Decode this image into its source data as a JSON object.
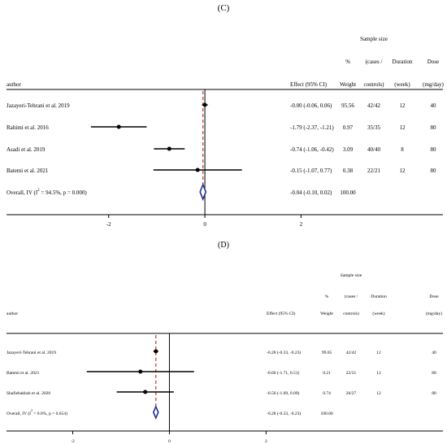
{
  "chart_data": [
    {
      "type": "forest",
      "panel_label": "(C)",
      "headers": {
        "author": "author",
        "effect": "Effect (95% CI)",
        "weight_sym": "%",
        "weight": "Weight",
        "sample_top": "Sample size",
        "sample_mid": "(cases /",
        "sample_bot": "controls)",
        "duration": "Duration",
        "duration_unit": "(week)",
        "dose": "Dose",
        "dose_unit": "(mg/day)"
      },
      "xlim": [
        -3.5,
        2.5
      ],
      "xticks": [
        -2,
        0,
        2
      ],
      "xtick_labels": [
        "-2",
        "0",
        "2"
      ],
      "pooled_line": -0.04,
      "studies": [
        {
          "author": "Jazayeri-Tehrani et al. 2019",
          "estimate": -0.0,
          "low": -0.06,
          "high": 0.06,
          "effect_text": "-0.00 (-0.06, 0.06)",
          "weight": "95.56",
          "sample": "42/42",
          "duration": "12",
          "dose": "40"
        },
        {
          "author": "Rahimi et al. 2016",
          "estimate": -1.79,
          "low": -2.37,
          "high": -1.21,
          "effect_text": "-1.79 (-2.37, -1.21)",
          "weight": "0.97",
          "sample": "35/35",
          "duration": "12",
          "dose": "80"
        },
        {
          "author": "Asadi et al. 2019",
          "estimate": -0.74,
          "low": -1.06,
          "high": -0.42,
          "effect_text": "-0.74 (-1.06, -0.42)",
          "weight": "3.09",
          "sample": "40/40",
          "duration": "8",
          "dose": "80"
        },
        {
          "author": "Batemi et al. 2021",
          "estimate": -0.15,
          "low": -1.07,
          "high": 0.77,
          "effect_text": "-0.15 (-1.07, 0.77)",
          "weight": "0.38",
          "sample": "22/21",
          "duration": "12",
          "dose": "80"
        }
      ],
      "overall": {
        "author_pre": "Overall, IV (I",
        "author_sup": "2",
        "author_post": " = 94.5%, p = 0.000)",
        "estimate": -0.04,
        "low": -0.1,
        "high": 0.02,
        "effect_text": "-0.04 (-0.10, 0.02)",
        "weight": "100.00"
      }
    },
    {
      "type": "forest",
      "panel_label": "(D)",
      "headers": {
        "author": "author",
        "effect": "Effect (95% CI)",
        "weight_sym": "%",
        "weight": "Weight",
        "sample_top": "Sample size",
        "sample_mid": "(cases /",
        "sample_bot": "controls)",
        "duration": "Duration",
        "duration_unit": "(week)",
        "dose": "Dose",
        "dose_unit": "(mg/day)"
      },
      "xlim": [
        -3.0,
        2.8
      ],
      "xticks": [
        -2,
        0,
        2
      ],
      "xtick_labels": [
        "-2",
        "0",
        "2"
      ],
      "pooled_line": -0.28,
      "studies": [
        {
          "author": "Jazayeri-Tehrani et al. 2019",
          "estimate": -0.28,
          "low": -0.33,
          "high": -0.23,
          "effect_text": "-0.28 (-0.33, -0.23)",
          "weight": "99.05",
          "sample": "42/42",
          "duration": "12",
          "dose": "40"
        },
        {
          "author": "Batemi et al. 2021",
          "estimate": -0.6,
          "low": -1.71,
          "high": 0.51,
          "effect_text": "-0.60 (-1.71, 0.51)",
          "weight": "0.21",
          "sample": "22/21",
          "duration": "12",
          "dose": "80"
        },
        {
          "author": "Shafiebakhsh et al. 2020",
          "estimate": -0.5,
          "low": -1.09,
          "high": 0.09,
          "effect_text": "-0.50 (-1.09, 0.09)",
          "weight": "0.74",
          "sample": "26/27",
          "duration": "12",
          "dose": "80"
        }
      ],
      "overall": {
        "author_pre": "Overall, IV (I",
        "author_sup": "2",
        "author_post": " = 0.0%, p = 0.654)",
        "estimate": -0.28,
        "low": -0.33,
        "high": -0.23,
        "effect_text": "-0.28 (-0.33, -0.23)",
        "weight": "100.00"
      }
    }
  ],
  "colors": {
    "ink": "#000000",
    "pooled_line": "#c0392b",
    "diamond_fill": "#ffffff",
    "diamond_stroke": "#1f2f8f"
  }
}
